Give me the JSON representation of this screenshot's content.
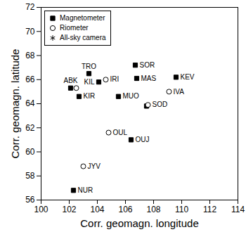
{
  "chart_data": {
    "type": "scatter",
    "x_label": "Corr. geomagn. longitude",
    "y_label": "Corr. geomagn. latitude",
    "xlim": [
      100,
      114
    ],
    "xticks": [
      100,
      102,
      104,
      106,
      108,
      110,
      112,
      114
    ],
    "ylim": [
      56,
      72
    ],
    "yticks": [
      56,
      58,
      60,
      62,
      64,
      66,
      68,
      70,
      72
    ],
    "legend": "top-left",
    "series": [
      {
        "name": "Magnetometer",
        "marker": "square",
        "color": "#000000",
        "labels": [
          "TRO",
          "KIL",
          "ABK",
          "KIR",
          "SOR",
          "MAS",
          "KEV",
          "MUO",
          null,
          "OUJ",
          "NUR"
        ],
        "x": [
          103.4,
          104.1,
          102.1,
          102.7,
          106.7,
          106.8,
          109.6,
          105.5,
          107.5,
          106.4,
          102.3
        ],
        "y": [
          66.5,
          65.8,
          65.3,
          64.6,
          67.2,
          66.1,
          66.2,
          64.6,
          63.8,
          61.0,
          56.8
        ]
      },
      {
        "name": "Riometer",
        "marker": "circle",
        "color": "#000000",
        "labels": [
          null,
          "IRI",
          "IVA",
          "SOD",
          "OUL",
          "JYV"
        ],
        "x": [
          102.5,
          104.6,
          109.1,
          107.6,
          104.8,
          103.0
        ],
        "y": [
          65.3,
          66.0,
          65.0,
          63.9,
          61.6,
          58.8
        ]
      },
      {
        "name": "All-sky camera",
        "marker": "asterisk",
        "color": "#000000",
        "labels": [],
        "x": [],
        "y": []
      }
    ]
  }
}
